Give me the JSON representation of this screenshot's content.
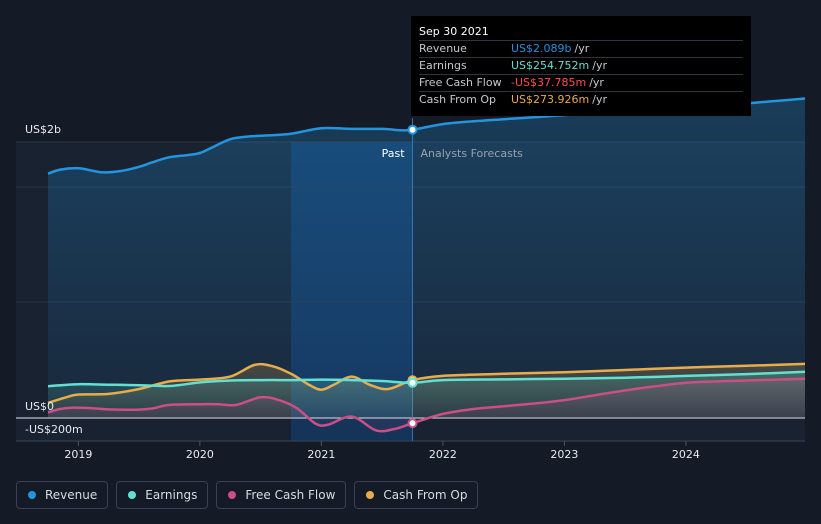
{
  "tooltip": {
    "date": "Sep 30 2021",
    "rows": [
      {
        "label": "Revenue",
        "value": "US$2.089b",
        "unit": "/yr",
        "color": "#2394df"
      },
      {
        "label": "Earnings",
        "value": "US$254.752m",
        "unit": "/yr",
        "color": "#62e0d2"
      },
      {
        "label": "Free Cash Flow",
        "value": "-US$37.785m",
        "unit": "/yr",
        "color": "#ff4d4d"
      },
      {
        "label": "Cash From Op",
        "value": "US$273.926m",
        "unit": "/yr",
        "color": "#e8ac4c"
      }
    ]
  },
  "legend": [
    {
      "label": "Revenue",
      "color": "#2394df"
    },
    {
      "label": "Earnings",
      "color": "#62e0d2"
    },
    {
      "label": "Free Cash Flow",
      "color": "#c94f85"
    },
    {
      "label": "Cash From Op",
      "color": "#e8ac4c"
    }
  ],
  "chart_data": {
    "type": "line",
    "title": "",
    "y_tick_labels": [
      "US$2b",
      "US$0",
      "-US$200m"
    ],
    "x_tick_labels": [
      "2019",
      "2020",
      "2021",
      "2022",
      "2023",
      "2024"
    ],
    "past_label": "Past",
    "forecast_label": "Analysts Forecasts",
    "x_range": [
      2018.75,
      2024.98
    ],
    "y_range_millions": [
      -200,
      2400
    ],
    "past_end": 2021.75,
    "highlight_start": 2020.75,
    "series": [
      {
        "name": "Revenue",
        "color": "#2394df",
        "points": [
          [
            2018.75,
            1770
          ],
          [
            2018.85,
            1800
          ],
          [
            2019,
            1810
          ],
          [
            2019.1,
            1795
          ],
          [
            2019.2,
            1780
          ],
          [
            2019.35,
            1790
          ],
          [
            2019.5,
            1820
          ],
          [
            2019.6,
            1850
          ],
          [
            2019.75,
            1890
          ],
          [
            2019.9,
            1905
          ],
          [
            2020,
            1920
          ],
          [
            2020.1,
            1960
          ],
          [
            2020.25,
            2020
          ],
          [
            2020.4,
            2040
          ],
          [
            2020.5,
            2045
          ],
          [
            2020.75,
            2060
          ],
          [
            2021,
            2100
          ],
          [
            2021.25,
            2095
          ],
          [
            2021.5,
            2095
          ],
          [
            2021.65,
            2085
          ],
          [
            2021.75,
            2089
          ],
          [
            2022,
            2130
          ],
          [
            2022.25,
            2150
          ],
          [
            2022.5,
            2165
          ],
          [
            2022.75,
            2180
          ],
          [
            2023,
            2195
          ],
          [
            2023.25,
            2210
          ],
          [
            2023.5,
            2220
          ],
          [
            2023.75,
            2230
          ],
          [
            2024,
            2245
          ],
          [
            2024.25,
            2262
          ],
          [
            2024.5,
            2280
          ],
          [
            2024.75,
            2298
          ],
          [
            2024.98,
            2315
          ]
        ]
      },
      {
        "name": "Earnings",
        "color": "#62e0d2",
        "points": [
          [
            2018.75,
            230
          ],
          [
            2018.9,
            240
          ],
          [
            2019,
            245
          ],
          [
            2019.2,
            242
          ],
          [
            2019.5,
            238
          ],
          [
            2019.75,
            232
          ],
          [
            2020,
            258
          ],
          [
            2020.25,
            272
          ],
          [
            2020.5,
            275
          ],
          [
            2020.75,
            275
          ],
          [
            2021,
            278
          ],
          [
            2021.25,
            275
          ],
          [
            2021.5,
            268
          ],
          [
            2021.75,
            255
          ],
          [
            2022,
            275
          ],
          [
            2022.5,
            280
          ],
          [
            2023,
            285
          ],
          [
            2023.5,
            292
          ],
          [
            2024,
            305
          ],
          [
            2024.5,
            318
          ],
          [
            2024.98,
            335
          ]
        ]
      },
      {
        "name": "Free Cash Flow",
        "color": "#c94f85",
        "points": [
          [
            2018.75,
            40
          ],
          [
            2018.85,
            65
          ],
          [
            2018.95,
            75
          ],
          [
            2019.1,
            72
          ],
          [
            2019.25,
            62
          ],
          [
            2019.45,
            60
          ],
          [
            2019.6,
            68
          ],
          [
            2019.75,
            95
          ],
          [
            2020,
            100
          ],
          [
            2020.15,
            100
          ],
          [
            2020.3,
            95
          ],
          [
            2020.5,
            150
          ],
          [
            2020.65,
            130
          ],
          [
            2020.8,
            70
          ],
          [
            2020.95,
            -40
          ],
          [
            2021.05,
            -50
          ],
          [
            2021.25,
            10
          ],
          [
            2021.45,
            -90
          ],
          [
            2021.6,
            -80
          ],
          [
            2021.75,
            -38
          ],
          [
            2022,
            30
          ],
          [
            2022.25,
            65
          ],
          [
            2022.5,
            85
          ],
          [
            2022.75,
            105
          ],
          [
            2023,
            130
          ],
          [
            2023.25,
            165
          ],
          [
            2023.5,
            200
          ],
          [
            2023.75,
            230
          ],
          [
            2024,
            255
          ],
          [
            2024.25,
            265
          ],
          [
            2024.5,
            272
          ],
          [
            2024.75,
            278
          ],
          [
            2024.98,
            285
          ]
        ]
      },
      {
        "name": "Cash From Op",
        "color": "#e8ac4c",
        "points": [
          [
            2018.75,
            110
          ],
          [
            2018.9,
            150
          ],
          [
            2019,
            170
          ],
          [
            2019.25,
            175
          ],
          [
            2019.5,
            210
          ],
          [
            2019.75,
            265
          ],
          [
            2020,
            278
          ],
          [
            2020.25,
            300
          ],
          [
            2020.45,
            385
          ],
          [
            2020.6,
            375
          ],
          [
            2020.75,
            320
          ],
          [
            2020.9,
            240
          ],
          [
            2021,
            205
          ],
          [
            2021.1,
            240
          ],
          [
            2021.25,
            300
          ],
          [
            2021.4,
            240
          ],
          [
            2021.55,
            210
          ],
          [
            2021.75,
            274
          ],
          [
            2022,
            305
          ],
          [
            2022.5,
            320
          ],
          [
            2023,
            332
          ],
          [
            2023.5,
            348
          ],
          [
            2024,
            365
          ],
          [
            2024.5,
            378
          ],
          [
            2024.98,
            392
          ]
        ]
      }
    ]
  }
}
